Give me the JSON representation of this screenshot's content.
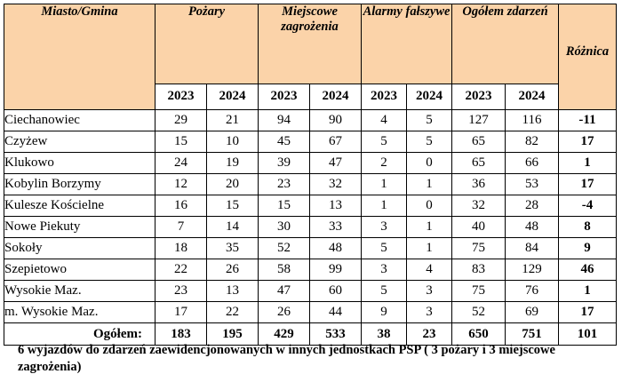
{
  "header": {
    "col_name": "Miasto/Gmina",
    "groups": [
      "Pożary",
      "Miejscowe zagrożenia",
      "Alarmy fałszywe",
      "Ogółem zdarzeń"
    ],
    "diff": "Różnica",
    "years": [
      "2023",
      "2024"
    ]
  },
  "rows": [
    {
      "name": "Ciechanowiec",
      "v": [
        "29",
        "21",
        "94",
        "90",
        "4",
        "5",
        "127",
        "116"
      ],
      "diff": "-11"
    },
    {
      "name": "Czyżew",
      "v": [
        "15",
        "10",
        "45",
        "67",
        "5",
        "5",
        "65",
        "82"
      ],
      "diff": "17"
    },
    {
      "name": "Klukowo",
      "v": [
        "24",
        "19",
        "39",
        "47",
        "2",
        "0",
        "65",
        "66"
      ],
      "diff": "1"
    },
    {
      "name": "Kobylin Borzymy",
      "v": [
        "12",
        "20",
        "23",
        "32",
        "1",
        "1",
        "36",
        "53"
      ],
      "diff": "17"
    },
    {
      "name": "Kulesze Kościelne",
      "v": [
        "16",
        "15",
        "15",
        "13",
        "1",
        "0",
        "32",
        "28"
      ],
      "diff": "-4"
    },
    {
      "name": "Nowe Piekuty",
      "v": [
        "7",
        "14",
        "30",
        "33",
        "3",
        "1",
        "40",
        "48"
      ],
      "diff": "8"
    },
    {
      "name": "Sokoły",
      "v": [
        "18",
        "35",
        "52",
        "48",
        "5",
        "1",
        "75",
        "84"
      ],
      "diff": "9"
    },
    {
      "name": "Szepietowo",
      "v": [
        "22",
        "26",
        "58",
        "99",
        "3",
        "4",
        "83",
        "129"
      ],
      "diff": "46"
    },
    {
      "name": "Wysokie Maz.",
      "v": [
        "23",
        "13",
        "47",
        "60",
        "5",
        "3",
        "75",
        "76"
      ],
      "diff": "1"
    },
    {
      "name": "m. Wysokie Maz.",
      "v": [
        "17",
        "22",
        "26",
        "44",
        "9",
        "3",
        "52",
        "69"
      ],
      "diff": "17"
    }
  ],
  "total": {
    "name": "Ogółem:",
    "v": [
      "183",
      "195",
      "429",
      "533",
      "38",
      "23",
      "650",
      "751"
    ],
    "diff": "101"
  },
  "footnote": "6 wyjazdów do zdarzeń zaewidencjonowanych w innych jednostkach PSP ( 3 pożary i 3 miejscowe zagrożenia)"
}
